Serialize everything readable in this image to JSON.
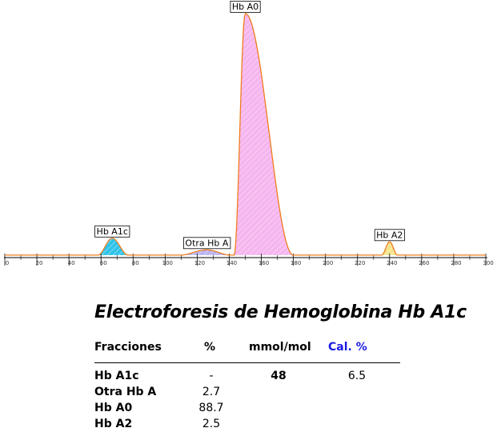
{
  "chart_data": {
    "type": "area",
    "title": "",
    "xlabel": "",
    "ylabel": "",
    "xlim": [
      0,
      300
    ],
    "ylim": [
      0,
      100
    ],
    "x_ticks": [
      0,
      20,
      40,
      60,
      80,
      100,
      120,
      140,
      160,
      180,
      200,
      220,
      240,
      260,
      280,
      300
    ],
    "grid": false,
    "line_color": "#f07c1e",
    "peaks": [
      {
        "label": "Hb A1c",
        "x_start": 58,
        "x_peak": 67,
        "x_end": 77,
        "height": 7.0,
        "fill": "#2fc3e8"
      },
      {
        "label": "Otra Hb A",
        "x_start": 109,
        "x_peak": 126,
        "x_end": 141,
        "height": 2.2,
        "fill": "#b9b4ef"
      },
      {
        "label": "Hb A0",
        "x_start": 143,
        "x_peak": 150,
        "x_end": 180,
        "height": 100,
        "fill": "#f5b5ee"
      },
      {
        "label": "Hb A2",
        "x_start": 235,
        "x_peak": 240,
        "x_end": 245,
        "height": 5.5,
        "fill": "#f4e48a"
      }
    ]
  },
  "report": {
    "title": "Electroforesis de Hemoglobina Hb A1c",
    "headers": {
      "fractions": "Fracciones",
      "percent": "%",
      "mmol": "mmol/mol",
      "cal": "Cal. %"
    },
    "rows": [
      {
        "name": "Hb A1c",
        "percent": "-",
        "mmol": "48",
        "cal": "6.5"
      },
      {
        "name": "Otra Hb A",
        "percent": "2.7",
        "mmol": "",
        "cal": ""
      },
      {
        "name": "Hb A0",
        "percent": "88.7",
        "mmol": "",
        "cal": ""
      },
      {
        "name": "Hb A2",
        "percent": "2.5",
        "mmol": "",
        "cal": ""
      }
    ]
  }
}
